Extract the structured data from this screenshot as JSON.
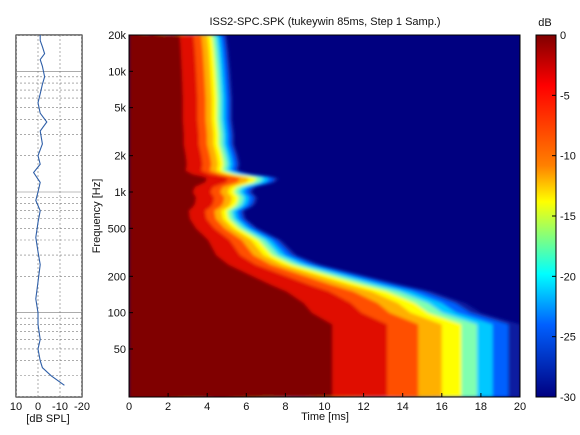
{
  "chart_data": [
    {
      "type": "line",
      "panel": "frequency-response",
      "xlabel": "[dB SPL]",
      "xticks": [
        10,
        0,
        -10,
        -20
      ],
      "xtick_labels": [
        "10",
        "0",
        "-10",
        "-20"
      ],
      "xlim": [
        10,
        -20
      ],
      "yscale": "log",
      "ylim": [
        20,
        20000
      ],
      "grid": true,
      "series": [
        {
          "color": "#2f5fa8",
          "points": [
            [
              -12,
              25
            ],
            [
              -6,
              30
            ],
            [
              -2,
              35
            ],
            [
              -1,
              40
            ],
            [
              0,
              50
            ],
            [
              -1,
              60
            ],
            [
              0,
              80
            ],
            [
              0,
              100
            ],
            [
              1,
              130
            ],
            [
              0,
              180
            ],
            [
              -1,
              250
            ],
            [
              0,
              320
            ],
            [
              1,
              420
            ],
            [
              0,
              560
            ],
            [
              -1,
              700
            ],
            [
              1,
              850
            ],
            [
              0,
              1000
            ],
            [
              -1,
              1200
            ],
            [
              2,
              1450
            ],
            [
              -1,
              1700
            ],
            [
              0,
              2000
            ],
            [
              -2,
              2500
            ],
            [
              -1,
              3200
            ],
            [
              -4,
              3800
            ],
            [
              -1,
              4500
            ],
            [
              0,
              5500
            ],
            [
              -1,
              6500
            ],
            [
              -2,
              7800
            ],
            [
              -3,
              9000
            ],
            [
              -2,
              11000
            ],
            [
              -1,
              12500
            ],
            [
              -3,
              14000
            ],
            [
              -2,
              16000
            ],
            [
              -1,
              18000
            ],
            [
              -1,
              20000
            ]
          ]
        }
      ]
    },
    {
      "type": "heatmap",
      "panel": "cumulative-spectral-decay",
      "title": "ISS2-SPC.SPK (tukeywin 85ms, Step 1 Samp.)",
      "xlabel": "Time [ms]",
      "ylabel": "Frequency [Hz]",
      "xlim": [
        0,
        20
      ],
      "xticks": [
        0,
        2,
        4,
        6,
        8,
        10,
        12,
        14,
        16,
        18,
        20
      ],
      "xtick_labels": [
        "0",
        "2",
        "4",
        "6",
        "8",
        "10",
        "12",
        "14",
        "16",
        "18",
        "20"
      ],
      "yscale": "log",
      "ylim": [
        20,
        20000
      ],
      "yticks": [
        50,
        100,
        200,
        500,
        1000,
        2000,
        5000,
        10000,
        20000
      ],
      "ytick_labels": [
        "50",
        "100",
        "200",
        "500",
        "1k",
        "2k",
        "5k",
        "10k",
        "20k"
      ],
      "color_range": [
        -30,
        0
      ],
      "decay_time_to_minus30dB_ms": {
        "frequencies_hz": [
          20,
          35,
          40,
          45,
          50,
          60,
          70,
          80,
          100,
          120,
          150,
          170,
          200,
          250,
          300,
          400,
          500,
          600,
          700,
          750,
          800,
          900,
          1000,
          1100,
          1200,
          1300,
          1350,
          1400,
          1500,
          1700,
          2000,
          2500,
          3000,
          4000,
          6000,
          10000,
          15000,
          20000
        ],
        "decay_ms": [
          20,
          20,
          20,
          20,
          20,
          20,
          20,
          20,
          18.0,
          17.2,
          15.5,
          14.0,
          12.2,
          9.8,
          8.6,
          7.8,
          6.6,
          6.0,
          5.9,
          6.3,
          6.5,
          6.6,
          6.3,
          6.5,
          7.5,
          7.7,
          7.2,
          6.3,
          5.6,
          5.7,
          5.6,
          5.4,
          5.4,
          5.3,
          5.3,
          5.2,
          5.1,
          5.0
        ]
      }
    }
  ],
  "colorbar": {
    "label": "dB",
    "ticks": [
      0,
      -5,
      -10,
      -15,
      -20,
      -25,
      -30
    ],
    "tick_labels": [
      "0",
      "-5",
      "-10",
      "-15",
      "-20",
      "-25",
      "-30"
    ]
  },
  "colors": {
    "background": "#ffffff",
    "grid": "#7a7a7a",
    "curve": "#2f5fa8",
    "colormap": [
      "#000080",
      "#0000ff",
      "#00ffff",
      "#ffff00",
      "#ff0000",
      "#800000"
    ]
  }
}
